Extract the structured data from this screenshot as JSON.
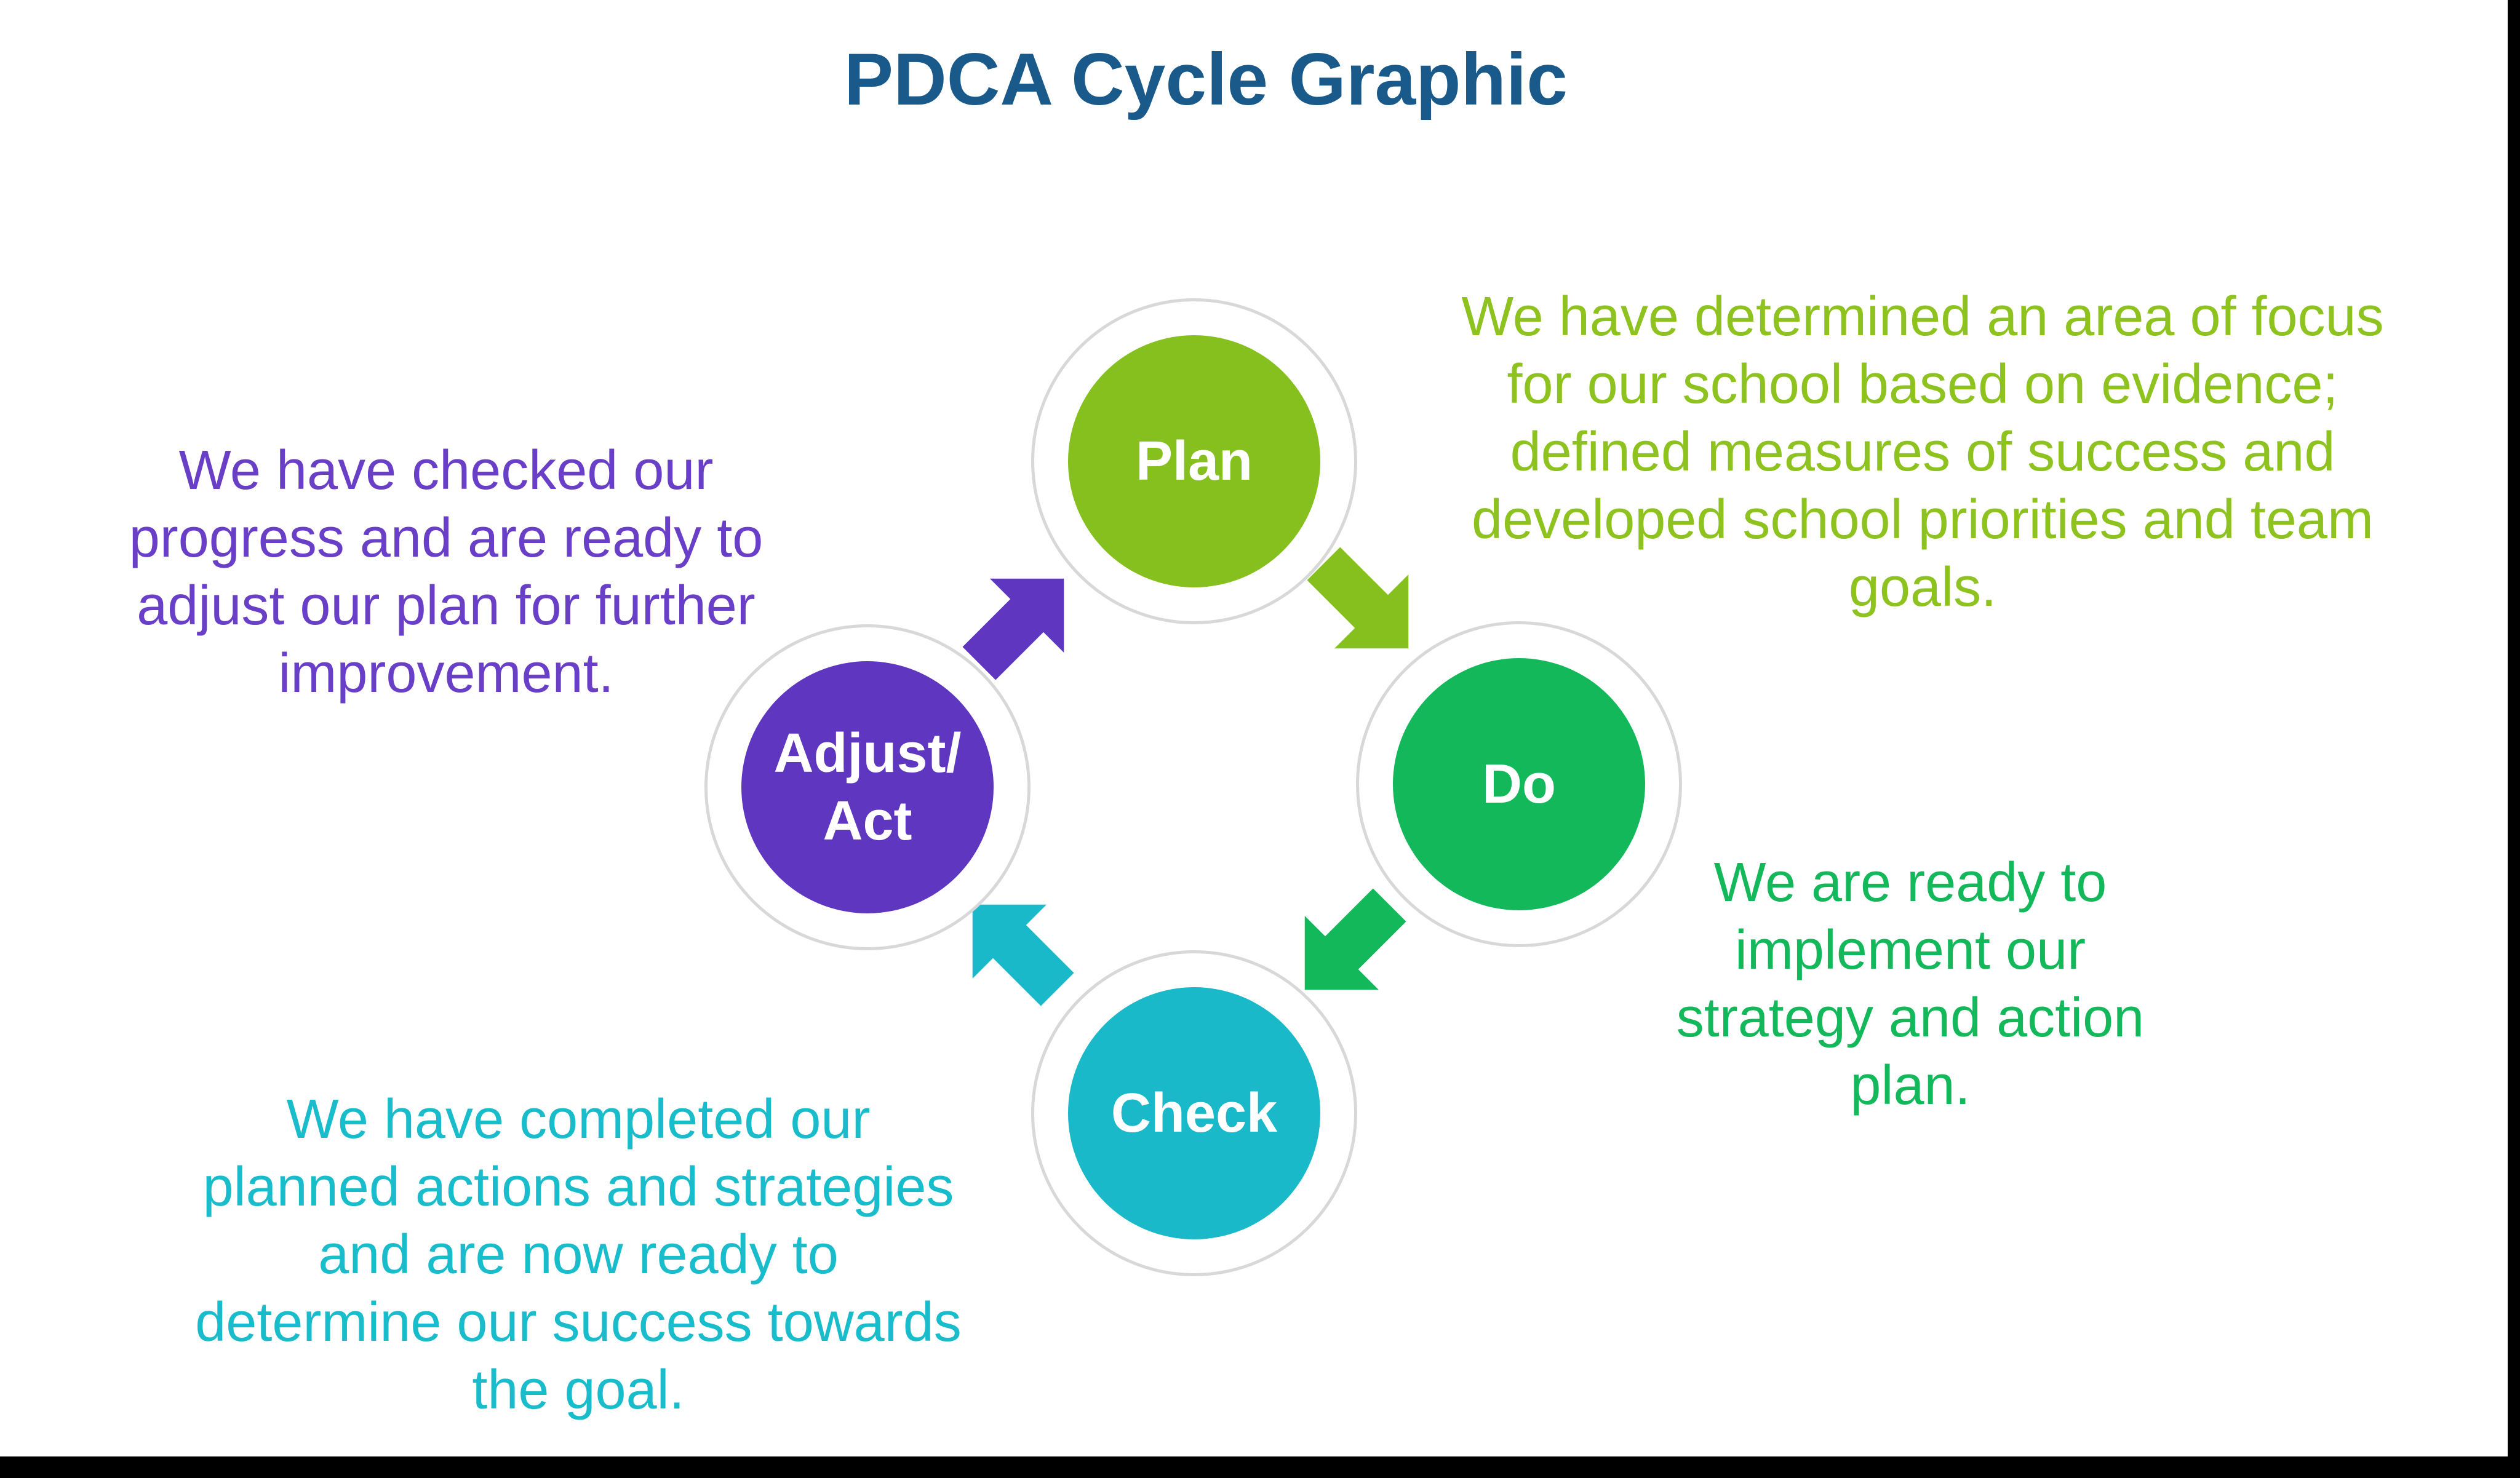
{
  "title": "PDCA Cycle Graphic",
  "steps": {
    "plan": {
      "label": "Plan",
      "color": "#85c01e",
      "text_color": "#8dc21f",
      "description": [
        "We have determined an area of focus",
        "for our school based on evidence;",
        "defined measures of success and",
        "developed school priorities and team",
        "goals."
      ]
    },
    "do": {
      "label": "Do",
      "color": "#13b85a",
      "text_color": "#13b85a",
      "description": [
        "We are ready to",
        "implement our",
        "strategy and action",
        "plan."
      ]
    },
    "check": {
      "label": "Check",
      "color": "#19b9c9",
      "text_color": "#18bccb",
      "description": [
        "We have completed our",
        "planned actions and strategies",
        "and are now ready to",
        "determine our success towards",
        "the goal."
      ]
    },
    "act": {
      "label_line1": "Adjust/",
      "label_line2": "Act",
      "color": "#5e36bf",
      "text_color": "#6a3fc8",
      "description": [
        "We have checked our",
        "progress and are ready to",
        "adjust our plan for further",
        "improvement."
      ]
    }
  }
}
